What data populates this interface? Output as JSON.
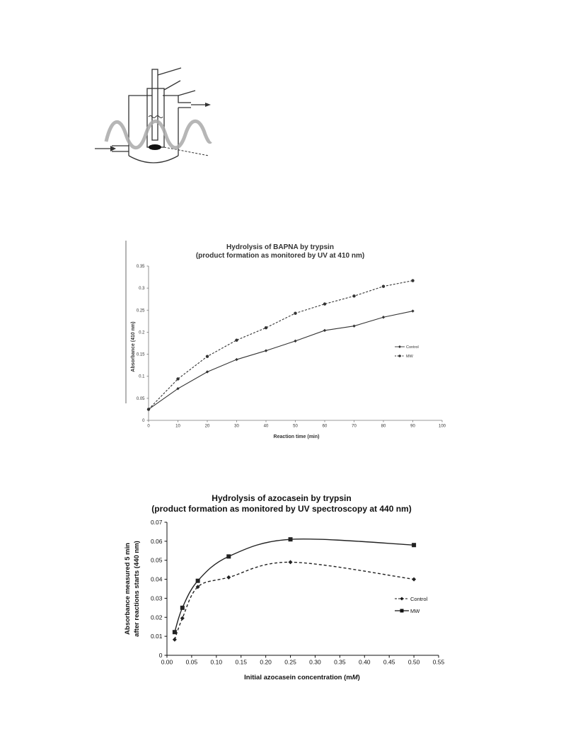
{
  "figure": {
    "apparatus_icon": "microwave-reactor-schematic"
  },
  "chart_data": [
    {
      "type": "line",
      "title": "Hydrolysis of BAPNA by trypsin",
      "subtitle": "(product formation as monitored by UV at 410 nm)",
      "xlabel": "Reaction time (min)",
      "ylabel": "Absorbance  (410 nm)",
      "xlim": [
        0,
        100
      ],
      "ylim": [
        0,
        0.35
      ],
      "xticks": [
        "0",
        "10",
        "20",
        "30",
        "40",
        "50",
        "60",
        "70",
        "80",
        "90",
        "100"
      ],
      "yticks": [
        "0",
        "0.05",
        "0.1",
        "0.15",
        "0.2",
        "0.25",
        "0.3",
        "0.35"
      ],
      "grid": false,
      "legend_position": "right",
      "x": [
        0,
        10,
        20,
        30,
        40,
        50,
        60,
        70,
        80,
        90
      ],
      "series": [
        {
          "name": "Control",
          "style": "solid",
          "marker": "diamond",
          "values": [
            0.025,
            0.072,
            0.11,
            0.138,
            0.158,
            0.18,
            0.204,
            0.214,
            0.234,
            0.248
          ]
        },
        {
          "name": "MW",
          "style": "dashed",
          "marker": "circle",
          "values": [
            0.025,
            0.094,
            0.145,
            0.182,
            0.21,
            0.243,
            0.264,
            0.282,
            0.304,
            0.317
          ]
        }
      ]
    },
    {
      "type": "line",
      "title": "Hydrolysis of azocasein by trypsin",
      "subtitle": "(product formation as monitored by UV spectroscopy at 440 nm)",
      "xlabel_prefix": "Initial azocasein concentration (m",
      "xlabel_unit": "M",
      "xlabel_suffix": ")",
      "ylabel_line1": "Absorbance measured 5 min",
      "ylabel_line2": "after reactions starts  (440 nm)",
      "xlim": [
        0,
        0.55
      ],
      "ylim": [
        0,
        0.07
      ],
      "xticks": [
        "0.00",
        "0.05",
        "0.10",
        "0.15",
        "0.20",
        "0.25",
        "0.30",
        "0.35",
        "0.40",
        "0.45",
        "0.50",
        "0.55"
      ],
      "yticks": [
        "0",
        "0.01",
        "0.02",
        "0.03",
        "0.04",
        "0.05",
        "0.06",
        "0.07"
      ],
      "grid": false,
      "legend_position": "right",
      "x": [
        0.0156,
        0.03125,
        0.0625,
        0.125,
        0.25,
        0.5
      ],
      "series": [
        {
          "name": "Control",
          "style": "dashed",
          "marker": "diamond",
          "values": [
            0.0083,
            0.0195,
            0.036,
            0.041,
            0.049,
            0.04
          ]
        },
        {
          "name": "MW",
          "style": "solid",
          "marker": "square",
          "values": [
            0.0122,
            0.025,
            0.0392,
            0.052,
            0.061,
            0.058
          ]
        }
      ]
    }
  ]
}
